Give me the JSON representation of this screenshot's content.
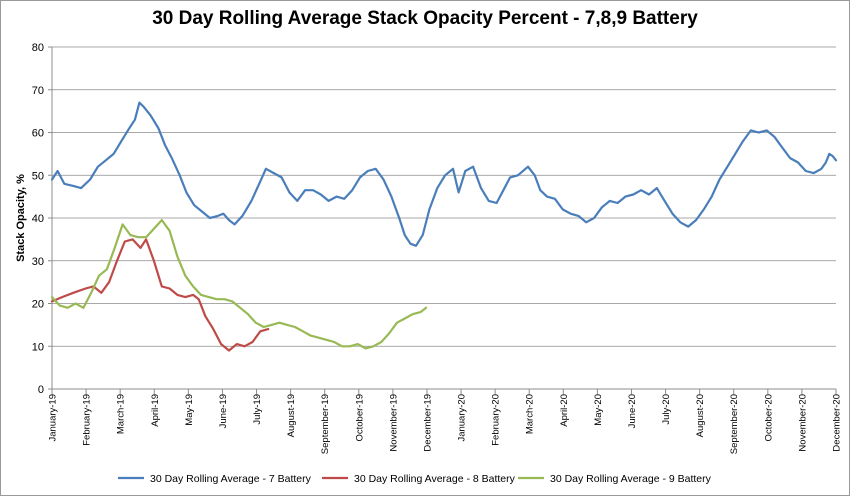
{
  "chart_data": {
    "type": "line",
    "title": "30 Day Rolling Average Stack Opacity Percent - 7,8,9 Battery",
    "ylabel": "Stack Opacity, %",
    "xlabel": "",
    "ylim": [
      0,
      80
    ],
    "yticks": [
      0,
      10,
      20,
      30,
      40,
      50,
      60,
      70,
      80
    ],
    "xticks": [
      "January-19",
      "February-19",
      "March-19",
      "April-19",
      "May-19",
      "June-19",
      "July-19",
      "August-19",
      "September-19",
      "October-19",
      "November-19",
      "December-19",
      "January-20",
      "February-20",
      "March-20",
      "April-20",
      "May-20",
      "June-20",
      "July-20",
      "August-20",
      "September-20",
      "October-20",
      "November-20",
      "December-20"
    ],
    "x_start": "2019-01-01",
    "x_end": "2020-12-01",
    "legend_position": "bottom",
    "grid": "horizontal",
    "series": [
      {
        "name": "30 Day Rolling Average - 7 Battery",
        "color": "#4a7ebb",
        "points": [
          [
            "2019-01-01",
            49
          ],
          [
            "2019-01-06",
            51
          ],
          [
            "2019-01-12",
            48
          ],
          [
            "2019-01-20",
            47.5
          ],
          [
            "2019-01-27",
            47
          ],
          [
            "2019-02-04",
            49
          ],
          [
            "2019-02-11",
            52
          ],
          [
            "2019-02-18",
            53.5
          ],
          [
            "2019-02-25",
            55
          ],
          [
            "2019-03-04",
            58
          ],
          [
            "2019-03-11",
            61
          ],
          [
            "2019-03-16",
            63
          ],
          [
            "2019-03-20",
            67
          ],
          [
            "2019-03-24",
            66
          ],
          [
            "2019-03-30",
            64
          ],
          [
            "2019-04-06",
            61
          ],
          [
            "2019-04-12",
            57
          ],
          [
            "2019-04-18",
            54
          ],
          [
            "2019-04-25",
            50
          ],
          [
            "2019-05-01",
            46
          ],
          [
            "2019-05-08",
            43
          ],
          [
            "2019-05-15",
            41.5
          ],
          [
            "2019-05-22",
            40
          ],
          [
            "2019-05-29",
            40.5
          ],
          [
            "2019-06-03",
            41
          ],
          [
            "2019-06-08",
            39.5
          ],
          [
            "2019-06-13",
            38.5
          ],
          [
            "2019-06-20",
            40.5
          ],
          [
            "2019-06-28",
            44
          ],
          [
            "2019-07-05",
            48
          ],
          [
            "2019-07-11",
            51.5
          ],
          [
            "2019-07-18",
            50.5
          ],
          [
            "2019-07-25",
            49.5
          ],
          [
            "2019-08-01",
            46
          ],
          [
            "2019-08-08",
            44
          ],
          [
            "2019-08-15",
            46.5
          ],
          [
            "2019-08-22",
            46.5
          ],
          [
            "2019-08-29",
            45.5
          ],
          [
            "2019-09-05",
            44
          ],
          [
            "2019-09-12",
            45
          ],
          [
            "2019-09-19",
            44.5
          ],
          [
            "2019-09-26",
            46.5
          ],
          [
            "2019-10-03",
            49.5
          ],
          [
            "2019-10-10",
            51
          ],
          [
            "2019-10-17",
            51.5
          ],
          [
            "2019-10-24",
            49
          ],
          [
            "2019-10-31",
            45
          ],
          [
            "2019-11-07",
            40
          ],
          [
            "2019-11-12",
            36
          ],
          [
            "2019-11-17",
            34
          ],
          [
            "2019-11-22",
            33.5
          ],
          [
            "2019-11-28",
            36
          ],
          [
            "2019-12-04",
            42
          ],
          [
            "2019-12-11",
            47
          ],
          [
            "2019-12-18",
            50
          ],
          [
            "2019-12-25",
            51.5
          ],
          [
            "2019-12-30",
            46
          ],
          [
            "2020-01-05",
            51
          ],
          [
            "2020-01-12",
            52
          ],
          [
            "2020-01-19",
            47
          ],
          [
            "2020-01-26",
            44
          ],
          [
            "2020-02-02",
            43.5
          ],
          [
            "2020-02-08",
            46.5
          ],
          [
            "2020-02-14",
            49.5
          ],
          [
            "2020-02-21",
            50
          ],
          [
            "2020-03-01",
            52
          ],
          [
            "2020-03-07",
            50
          ],
          [
            "2020-03-12",
            46.5
          ],
          [
            "2020-03-18",
            45
          ],
          [
            "2020-03-25",
            44.5
          ],
          [
            "2020-04-01",
            42
          ],
          [
            "2020-04-08",
            41
          ],
          [
            "2020-04-15",
            40.5
          ],
          [
            "2020-04-22",
            39
          ],
          [
            "2020-04-29",
            40
          ],
          [
            "2020-05-06",
            42.5
          ],
          [
            "2020-05-13",
            44
          ],
          [
            "2020-05-20",
            43.5
          ],
          [
            "2020-05-27",
            45
          ],
          [
            "2020-06-03",
            45.5
          ],
          [
            "2020-06-10",
            46.5
          ],
          [
            "2020-06-17",
            45.5
          ],
          [
            "2020-06-24",
            47
          ],
          [
            "2020-07-01",
            44
          ],
          [
            "2020-07-08",
            41
          ],
          [
            "2020-07-15",
            39
          ],
          [
            "2020-07-22",
            38
          ],
          [
            "2020-07-29",
            39.5
          ],
          [
            "2020-08-05",
            42
          ],
          [
            "2020-08-12",
            45
          ],
          [
            "2020-08-19",
            49
          ],
          [
            "2020-08-26",
            52
          ],
          [
            "2020-09-02",
            55
          ],
          [
            "2020-09-09",
            58
          ],
          [
            "2020-09-16",
            60.5
          ],
          [
            "2020-09-23",
            60
          ],
          [
            "2020-09-30",
            60.5
          ],
          [
            "2020-10-07",
            59
          ],
          [
            "2020-10-14",
            56.5
          ],
          [
            "2020-10-21",
            54
          ],
          [
            "2020-10-28",
            53
          ],
          [
            "2020-11-04",
            51
          ],
          [
            "2020-11-11",
            50.5
          ],
          [
            "2020-11-18",
            51.5
          ],
          [
            "2020-11-22",
            53
          ],
          [
            "2020-11-25",
            55
          ],
          [
            "2020-11-28",
            54.5
          ],
          [
            "2020-12-01",
            53.5
          ]
        ]
      },
      {
        "name": "30 Day Rolling Average - 8 Battery",
        "color": "#be4b48",
        "points": [
          [
            "2019-01-01",
            20.5
          ],
          [
            "2019-01-10",
            21.5
          ],
          [
            "2019-01-20",
            22.5
          ],
          [
            "2019-01-31",
            23.5
          ],
          [
            "2019-02-07",
            24
          ],
          [
            "2019-02-14",
            22.5
          ],
          [
            "2019-02-21",
            25
          ],
          [
            "2019-02-28",
            30
          ],
          [
            "2019-03-07",
            34.5
          ],
          [
            "2019-03-14",
            35
          ],
          [
            "2019-03-21",
            33
          ],
          [
            "2019-03-26",
            35
          ],
          [
            "2019-04-02",
            30
          ],
          [
            "2019-04-09",
            24
          ],
          [
            "2019-04-16",
            23.5
          ],
          [
            "2019-04-23",
            22
          ],
          [
            "2019-04-30",
            21.5
          ],
          [
            "2019-05-07",
            22
          ],
          [
            "2019-05-12",
            21
          ],
          [
            "2019-05-18",
            17
          ],
          [
            "2019-05-25",
            14
          ],
          [
            "2019-06-01",
            10.5
          ],
          [
            "2019-06-08",
            9
          ],
          [
            "2019-06-15",
            10.5
          ],
          [
            "2019-06-22",
            10
          ],
          [
            "2019-06-29",
            11
          ],
          [
            "2019-07-06",
            13.5
          ],
          [
            "2019-07-13",
            14
          ]
        ]
      },
      {
        "name": "30 Day Rolling Average - 9 Battery",
        "color": "#98b954",
        "points": [
          [
            "2019-01-01",
            21.5
          ],
          [
            "2019-01-08",
            19.5
          ],
          [
            "2019-01-15",
            19
          ],
          [
            "2019-01-22",
            20
          ],
          [
            "2019-01-29",
            19
          ],
          [
            "2019-02-05",
            22.5
          ],
          [
            "2019-02-12",
            26.5
          ],
          [
            "2019-02-19",
            28
          ],
          [
            "2019-02-26",
            33
          ],
          [
            "2019-03-05",
            38.5
          ],
          [
            "2019-03-12",
            36
          ],
          [
            "2019-03-19",
            35.5
          ],
          [
            "2019-03-26",
            35.5
          ],
          [
            "2019-04-02",
            37.5
          ],
          [
            "2019-04-09",
            39.5
          ],
          [
            "2019-04-16",
            37
          ],
          [
            "2019-04-23",
            31
          ],
          [
            "2019-04-30",
            26.5
          ],
          [
            "2019-05-07",
            24
          ],
          [
            "2019-05-14",
            22
          ],
          [
            "2019-05-21",
            21.5
          ],
          [
            "2019-05-28",
            21
          ],
          [
            "2019-06-04",
            21
          ],
          [
            "2019-06-11",
            20.5
          ],
          [
            "2019-06-18",
            19
          ],
          [
            "2019-06-25",
            17.5
          ],
          [
            "2019-07-02",
            15.5
          ],
          [
            "2019-07-09",
            14.5
          ],
          [
            "2019-07-16",
            15
          ],
          [
            "2019-07-23",
            15.5
          ],
          [
            "2019-07-30",
            15
          ],
          [
            "2019-08-06",
            14.5
          ],
          [
            "2019-08-13",
            13.5
          ],
          [
            "2019-08-20",
            12.5
          ],
          [
            "2019-08-27",
            12
          ],
          [
            "2019-09-03",
            11.5
          ],
          [
            "2019-09-10",
            11
          ],
          [
            "2019-09-17",
            10
          ],
          [
            "2019-09-24",
            10
          ],
          [
            "2019-10-01",
            10.5
          ],
          [
            "2019-10-08",
            9.5
          ],
          [
            "2019-10-15",
            10
          ],
          [
            "2019-10-22",
            11
          ],
          [
            "2019-10-29",
            13
          ],
          [
            "2019-11-05",
            15.5
          ],
          [
            "2019-11-12",
            16.5
          ],
          [
            "2019-11-19",
            17.5
          ],
          [
            "2019-11-26",
            18
          ],
          [
            "2019-12-01",
            19
          ]
        ]
      }
    ]
  }
}
